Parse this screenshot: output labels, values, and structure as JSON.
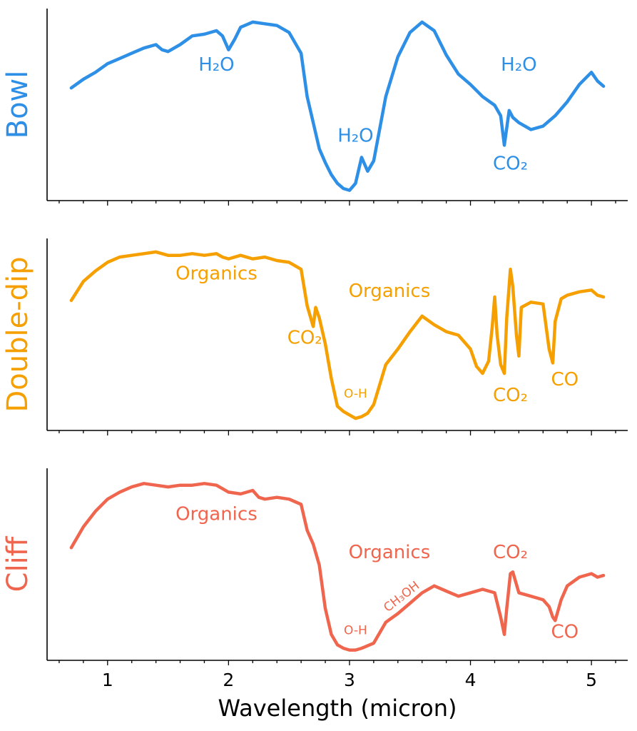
{
  "chart_data": {
    "type": "line",
    "xlabel": "Wavelength (micron)",
    "xlim": [
      0.5,
      5.3
    ],
    "xticks": [
      1,
      2,
      3,
      4,
      5
    ],
    "xtick_labels": [
      "1",
      "2",
      "3",
      "4",
      "5"
    ],
    "ylim": [
      0,
      1
    ],
    "panels": [
      {
        "id": "bowl",
        "ylabel": "Bowl",
        "color": "#2e8fe6",
        "x": [
          0.7,
          0.8,
          0.9,
          1.0,
          1.1,
          1.2,
          1.3,
          1.4,
          1.45,
          1.5,
          1.6,
          1.7,
          1.8,
          1.9,
          1.95,
          2.0,
          2.05,
          2.1,
          2.2,
          2.3,
          2.4,
          2.5,
          2.6,
          2.65,
          2.7,
          2.75,
          2.8,
          2.85,
          2.9,
          2.95,
          3.0,
          3.05,
          3.1,
          3.15,
          3.2,
          3.3,
          3.4,
          3.5,
          3.6,
          3.7,
          3.8,
          3.9,
          4.0,
          4.1,
          4.2,
          4.25,
          4.28,
          4.32,
          4.35,
          4.4,
          4.5,
          4.6,
          4.7,
          4.8,
          4.9,
          5.0,
          5.05,
          5.1
        ],
        "y": [
          0.6,
          0.65,
          0.69,
          0.74,
          0.77,
          0.8,
          0.83,
          0.85,
          0.82,
          0.81,
          0.85,
          0.9,
          0.91,
          0.93,
          0.9,
          0.82,
          0.88,
          0.95,
          0.98,
          0.97,
          0.96,
          0.92,
          0.8,
          0.55,
          0.4,
          0.25,
          0.17,
          0.1,
          0.05,
          0.02,
          0.01,
          0.05,
          0.2,
          0.12,
          0.18,
          0.55,
          0.78,
          0.92,
          0.98,
          0.93,
          0.79,
          0.68,
          0.62,
          0.55,
          0.5,
          0.44,
          0.27,
          0.47,
          0.43,
          0.4,
          0.36,
          0.38,
          0.44,
          0.52,
          0.62,
          0.69,
          0.64,
          0.61
        ]
      },
      {
        "id": "double-dip",
        "ylabel": "Double-dip",
        "color": "#f5a000",
        "x": [
          0.7,
          0.8,
          0.9,
          1.0,
          1.1,
          1.2,
          1.3,
          1.4,
          1.5,
          1.6,
          1.7,
          1.8,
          1.9,
          1.95,
          2.0,
          2.1,
          2.2,
          2.3,
          2.4,
          2.5,
          2.6,
          2.65,
          2.7,
          2.72,
          2.75,
          2.8,
          2.85,
          2.9,
          2.95,
          3.0,
          3.05,
          3.1,
          3.15,
          3.2,
          3.3,
          3.4,
          3.5,
          3.6,
          3.7,
          3.8,
          3.9,
          4.0,
          4.05,
          4.1,
          4.15,
          4.18,
          4.2,
          4.22,
          4.25,
          4.28,
          4.3,
          4.33,
          4.35,
          4.38,
          4.4,
          4.42,
          4.5,
          4.6,
          4.65,
          4.68,
          4.7,
          4.75,
          4.8,
          4.85,
          4.9,
          5.0,
          5.05,
          5.1
        ],
        "y": [
          0.7,
          0.81,
          0.87,
          0.92,
          0.95,
          0.96,
          0.97,
          0.98,
          0.96,
          0.96,
          0.97,
          0.96,
          0.97,
          0.95,
          0.94,
          0.96,
          0.94,
          0.95,
          0.93,
          0.92,
          0.88,
          0.67,
          0.55,
          0.66,
          0.6,
          0.45,
          0.25,
          0.09,
          0.06,
          0.04,
          0.02,
          0.03,
          0.05,
          0.1,
          0.33,
          0.42,
          0.52,
          0.61,
          0.56,
          0.52,
          0.5,
          0.42,
          0.32,
          0.28,
          0.35,
          0.55,
          0.72,
          0.5,
          0.33,
          0.28,
          0.6,
          0.88,
          0.78,
          0.5,
          0.38,
          0.66,
          0.69,
          0.68,
          0.42,
          0.34,
          0.58,
          0.71,
          0.73,
          0.74,
          0.75,
          0.76,
          0.73,
          0.72
        ]
      },
      {
        "id": "cliff",
        "ylabel": "Cliff",
        "color": "#f0654d",
        "x": [
          0.7,
          0.8,
          0.9,
          1.0,
          1.1,
          1.2,
          1.3,
          1.4,
          1.5,
          1.6,
          1.7,
          1.8,
          1.9,
          1.95,
          2.0,
          2.1,
          2.2,
          2.25,
          2.3,
          2.4,
          2.5,
          2.6,
          2.65,
          2.7,
          2.75,
          2.8,
          2.85,
          2.9,
          2.95,
          3.0,
          3.05,
          3.1,
          3.2,
          3.3,
          3.4,
          3.5,
          3.6,
          3.7,
          3.8,
          3.9,
          4.0,
          4.1,
          4.2,
          4.25,
          4.28,
          4.3,
          4.33,
          4.35,
          4.4,
          4.5,
          4.6,
          4.65,
          4.68,
          4.7,
          4.75,
          4.8,
          4.9,
          5.0,
          5.05,
          5.1
        ],
        "y": [
          0.6,
          0.72,
          0.81,
          0.88,
          0.92,
          0.95,
          0.97,
          0.96,
          0.95,
          0.96,
          0.96,
          0.97,
          0.96,
          0.94,
          0.92,
          0.91,
          0.93,
          0.89,
          0.88,
          0.89,
          0.88,
          0.85,
          0.7,
          0.62,
          0.5,
          0.25,
          0.1,
          0.04,
          0.02,
          0.01,
          0.01,
          0.02,
          0.05,
          0.17,
          0.22,
          0.28,
          0.34,
          0.38,
          0.35,
          0.32,
          0.34,
          0.36,
          0.34,
          0.2,
          0.1,
          0.25,
          0.45,
          0.46,
          0.34,
          0.32,
          0.3,
          0.26,
          0.2,
          0.18,
          0.3,
          0.38,
          0.43,
          0.45,
          0.43,
          0.44
        ]
      }
    ],
    "annotations": [
      {
        "panel": 0,
        "text": "H₂O",
        "x": 1.9,
        "y": 0.7,
        "size": 26
      },
      {
        "panel": 0,
        "text": "H₂O",
        "x": 3.05,
        "y": 0.29,
        "size": 26
      },
      {
        "panel": 0,
        "text": "H₂O",
        "x": 4.4,
        "y": 0.7,
        "size": 26
      },
      {
        "panel": 0,
        "text": "CO₂",
        "x": 4.33,
        "y": 0.13,
        "size": 26
      },
      {
        "panel": 1,
        "text": "Organics",
        "x": 1.9,
        "y": 0.82,
        "size": 26
      },
      {
        "panel": 1,
        "text": "Organics",
        "x": 3.33,
        "y": 0.72,
        "size": 26
      },
      {
        "panel": 1,
        "text": "CO₂",
        "x": 2.63,
        "y": 0.45,
        "size": 26
      },
      {
        "panel": 1,
        "text": "O-H",
        "x": 3.05,
        "y": 0.14,
        "size": 17
      },
      {
        "panel": 1,
        "text": "CO₂",
        "x": 4.33,
        "y": 0.12,
        "size": 26
      },
      {
        "panel": 1,
        "text": "CO",
        "x": 4.78,
        "y": 0.21,
        "size": 26
      },
      {
        "panel": 1,
        "text": "",
        "x": 0,
        "y": 0,
        "size": 0
      },
      {
        "panel": 2,
        "text": "Organics",
        "x": 1.9,
        "y": 0.76,
        "size": 26
      },
      {
        "panel": 2,
        "text": "Organics",
        "x": 3.33,
        "y": 0.54,
        "size": 26
      },
      {
        "panel": 2,
        "text": "O-H",
        "x": 3.05,
        "y": 0.1,
        "size": 17
      },
      {
        "panel": 2,
        "text": "CH₃OH",
        "x": 3.45,
        "y": 0.3,
        "size": 17,
        "rotate": -38
      },
      {
        "panel": 2,
        "text": "CO₂",
        "x": 4.33,
        "y": 0.54,
        "size": 26
      },
      {
        "panel": 2,
        "text": "CO",
        "x": 4.78,
        "y": 0.08,
        "size": 26
      }
    ]
  }
}
